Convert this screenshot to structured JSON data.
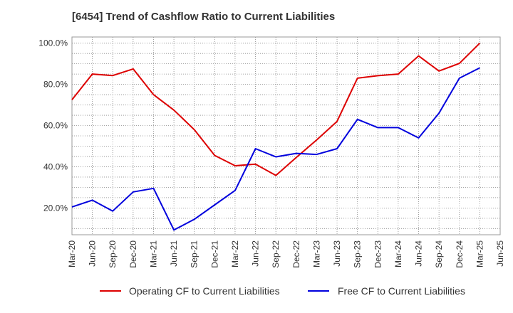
{
  "title": "[6454]  Trend of Cashflow Ratio to Current Liabilities",
  "chart_data": {
    "type": "line",
    "title": "[6454]  Trend of Cashflow Ratio to Current Liabilities",
    "xlabel": "",
    "ylabel": "",
    "x": [
      "Mar-20",
      "Jun-20",
      "Sep-20",
      "Dec-20",
      "Mar-21",
      "Jun-21",
      "Sep-21",
      "Dec-21",
      "Mar-22",
      "Jun-22",
      "Sep-22",
      "Dec-22",
      "Mar-23",
      "Jun-23",
      "Sep-23",
      "Dec-23",
      "Mar-24",
      "Jun-24",
      "Sep-24",
      "Dec-24",
      "Mar-25",
      "Jun-25"
    ],
    "y_ticks": [
      "20.0%",
      "40.0%",
      "60.0%",
      "80.0%",
      "100.0%"
    ],
    "y_tick_values": [
      20,
      40,
      60,
      80,
      100
    ],
    "ylim": [
      7,
      103
    ],
    "grid": true,
    "legend_position": "bottom",
    "series": [
      {
        "name": "Operating CF to Current Liabilities",
        "color": "#dd0000",
        "values": [
          72.5,
          85.0,
          84.3,
          87.5,
          75.0,
          67.5,
          58.0,
          45.5,
          40.5,
          41.3,
          35.8,
          44.5,
          53.0,
          62.0,
          83.0,
          84.2,
          85.0,
          93.8,
          86.5,
          90.2,
          100.0,
          null
        ]
      },
      {
        "name": "Free CF to Current Liabilities",
        "color": "#0000dd",
        "values": [
          20.5,
          23.8,
          18.5,
          27.8,
          29.5,
          9.3,
          14.5,
          21.5,
          28.5,
          48.8,
          44.8,
          46.5,
          46.0,
          48.8,
          63.0,
          59.0,
          59.0,
          54.0,
          66.0,
          83.0,
          88.0,
          null
        ]
      }
    ]
  }
}
